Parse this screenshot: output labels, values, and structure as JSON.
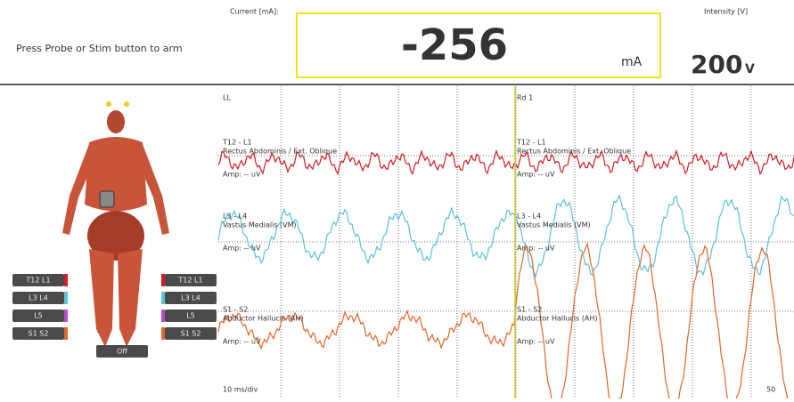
{
  "header": {
    "instruction": "Press Probe or Stim button to arm",
    "current_label": "Current [mA]:",
    "current_value": "-256",
    "current_unit": "mA",
    "intensity_label": "Intensity [V]",
    "intensity_value": "200",
    "intensity_unit": "V"
  },
  "plot": {
    "left_title": "LL",
    "right_title": "Rd 1",
    "timebase": "10 ms/div",
    "right_scale": "50",
    "channels": [
      {
        "name": "T12 - L1",
        "muscle": "Rectus Abdominis / Ext. Oblique",
        "amp": "Amp: -- uV",
        "color": "#d41c24"
      },
      {
        "name": "L3 - L4",
        "muscle": "Vastus Medialis (VM)",
        "amp": "Amp: -- uV",
        "color": "#5bc2dc"
      },
      {
        "name": "S1 - S2",
        "muscle": "Abductor Hallucis (AH)",
        "amp": "Amp: -- uV",
        "color": "#e2672a"
      }
    ]
  },
  "buttons": {
    "left": [
      "T12 L1",
      "L3 L4",
      "L5",
      "S1 S2"
    ],
    "right": [
      "T12 L1",
      "L3 L4",
      "L5",
      "S1 S2"
    ],
    "center": "Off"
  }
}
